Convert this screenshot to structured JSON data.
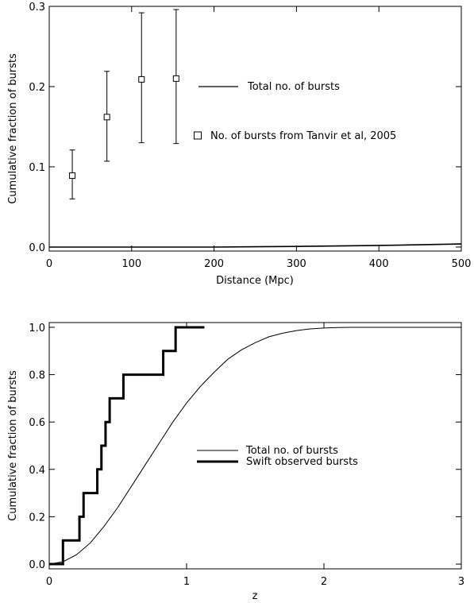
{
  "chart_data": [
    {
      "type": "scatter",
      "xlabel": "Distance (Mpc)",
      "ylabel": "Cumulative fraction of bursts",
      "xlim": [
        0,
        500
      ],
      "ylim": [
        -0.005,
        0.3
      ],
      "x_ticks": [
        0,
        100,
        200,
        300,
        400,
        500
      ],
      "x_tick_labels": [
        "0",
        "100",
        "200",
        "300",
        "400",
        "500"
      ],
      "y_ticks": [
        0.0,
        0.1,
        0.2,
        0.3
      ],
      "y_tick_labels": [
        "0.0",
        "0.1",
        "0.2",
        "0.3"
      ],
      "legend_placement": "right",
      "series": [
        {
          "name": "Total no. of bursts",
          "style": "thin-line",
          "x": [
            0,
            100,
            200,
            250,
            300,
            350,
            400,
            450,
            500
          ],
          "y": [
            0,
            0,
            0,
            0.0003,
            0.0007,
            0.0013,
            0.002,
            0.0028,
            0.0038
          ]
        },
        {
          "name": "No. of bursts from Tanvir et al, 2005",
          "style": "square-errorbar",
          "x": [
            28,
            70,
            112,
            154
          ],
          "y": [
            0.089,
            0.162,
            0.209,
            0.21
          ],
          "y_low": [
            0.06,
            0.107,
            0.13,
            0.129
          ],
          "y_high": [
            0.121,
            0.219,
            0.292,
            0.296
          ]
        }
      ]
    },
    {
      "type": "line",
      "xlabel": "z",
      "ylabel": "Cumulative fraction of bursts",
      "xlim": [
        0,
        3
      ],
      "ylim": [
        -0.02,
        1.02
      ],
      "x_ticks": [
        0,
        1,
        2,
        3
      ],
      "x_tick_labels": [
        "0",
        "1",
        "2",
        "3"
      ],
      "y_ticks": [
        0.0,
        0.2,
        0.4,
        0.6,
        0.8,
        1.0
      ],
      "y_tick_labels": [
        "0.0",
        "0.2",
        "0.4",
        "0.6",
        "0.8",
        "1.0"
      ],
      "legend_placement": "center-right",
      "series": [
        {
          "name": "Total no. of bursts",
          "style": "thin-line",
          "x": [
            0.0,
            0.1,
            0.2,
            0.3,
            0.4,
            0.5,
            0.6,
            0.7,
            0.8,
            0.9,
            1.0,
            1.1,
            1.2,
            1.3,
            1.4,
            1.5,
            1.6,
            1.7,
            1.8,
            1.9,
            2.0,
            2.1,
            2.2,
            2.4,
            2.6,
            2.8,
            3.0
          ],
          "y": [
            0.0,
            0.01,
            0.04,
            0.09,
            0.16,
            0.24,
            0.33,
            0.42,
            0.51,
            0.6,
            0.68,
            0.75,
            0.81,
            0.865,
            0.905,
            0.935,
            0.96,
            0.975,
            0.986,
            0.993,
            0.997,
            0.999,
            1.0,
            1.0,
            1.0,
            1.0,
            1.0
          ]
        },
        {
          "name": "Swift observed bursts",
          "style": "thick-step",
          "x": [
            0.0,
            0.1,
            0.22,
            0.25,
            0.35,
            0.38,
            0.41,
            0.44,
            0.54,
            0.83,
            0.92,
            1.13
          ],
          "y": [
            0.0,
            0.1,
            0.2,
            0.3,
            0.4,
            0.5,
            0.6,
            0.7,
            0.8,
            0.9,
            1.0,
            1.0
          ]
        }
      ]
    }
  ]
}
